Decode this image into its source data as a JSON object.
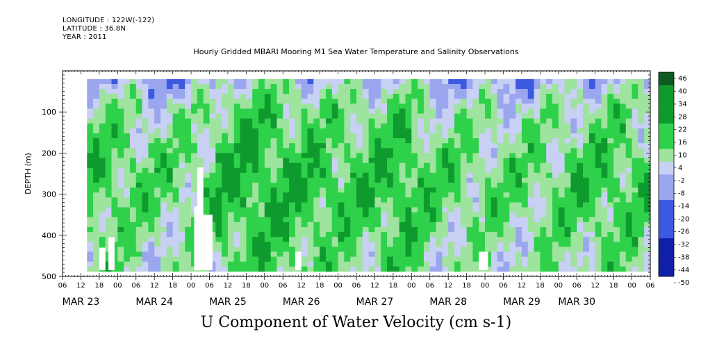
{
  "header": {
    "longitude": "LONGITUDE : 122W(-122)",
    "latitude": "LATITUDE : 36.8N",
    "year": "YEAR : 2011"
  },
  "chart_data": {
    "type": "heatmap",
    "title": "Hourly Gridded MBARI Mooring M1 Sea Water Temperature and Salinity Observations",
    "big_title": "U Component of Water Velocity (cm s-1)",
    "ylabel": "DEPTH (m)",
    "xlabel": "",
    "ylim": [
      500,
      0
    ],
    "y_ticks": [
      "100",
      "200",
      "300",
      "400",
      "500"
    ],
    "y_tick_values": [
      100,
      200,
      300,
      400,
      500
    ],
    "data_depth_range": [
      20,
      485
    ],
    "x_unit": "hours since MAR 23 00",
    "xlim": [
      -18,
      174
    ],
    "data_time_range": [
      -10,
      174
    ],
    "x_hour_labels": [
      "06",
      "12",
      "18",
      "00",
      "06",
      "12",
      "18",
      "00",
      "06",
      "12",
      "18",
      "00",
      "06",
      "12",
      "18",
      "00",
      "06",
      "12",
      "18",
      "00",
      "06",
      "12",
      "18",
      "00",
      "06",
      "12",
      "18",
      "00",
      "06",
      "12",
      "18",
      "00",
      "06"
    ],
    "x_hour_values": [
      -18,
      -12,
      -6,
      0,
      6,
      12,
      18,
      24,
      30,
      36,
      42,
      48,
      54,
      60,
      66,
      72,
      78,
      84,
      90,
      96,
      102,
      108,
      114,
      120,
      126,
      132,
      138,
      144,
      150,
      156,
      162,
      168,
      174
    ],
    "date_labels": [
      "MAR 23",
      "MAR 24",
      "MAR 25",
      "MAR 26",
      "MAR 27",
      "MAR 28",
      "MAR 29",
      "MAR 30"
    ],
    "date_label_values": [
      -12,
      12,
      36,
      60,
      84,
      108,
      132,
      150
    ],
    "colorbar_levels": [
      -50,
      -44,
      -38,
      -32,
      -26,
      -20,
      -14,
      -8,
      -2,
      4,
      10,
      16,
      22,
      28,
      34,
      40,
      46
    ],
    "colorbar_labels": [
      "46",
      "40",
      "34",
      "28",
      "22",
      "16",
      "10",
      "4",
      "-2",
      "-8",
      "-14",
      "-20",
      "-26",
      "-32",
      "-38",
      "-44",
      "-50"
    ],
    "colors": {
      "neg_strong": "#101fa8",
      "neg_mid": "#3c5ae0",
      "neg_weak": "#9aa6ee",
      "zero": "#c8d0f4",
      "pos_weak": "#9ee39e",
      "pos_mid": "#2fd14a",
      "pos_strong": "#0f9a2e",
      "pos_max": "#0b5a1e"
    },
    "grid": false,
    "legend": "right colorbar"
  }
}
